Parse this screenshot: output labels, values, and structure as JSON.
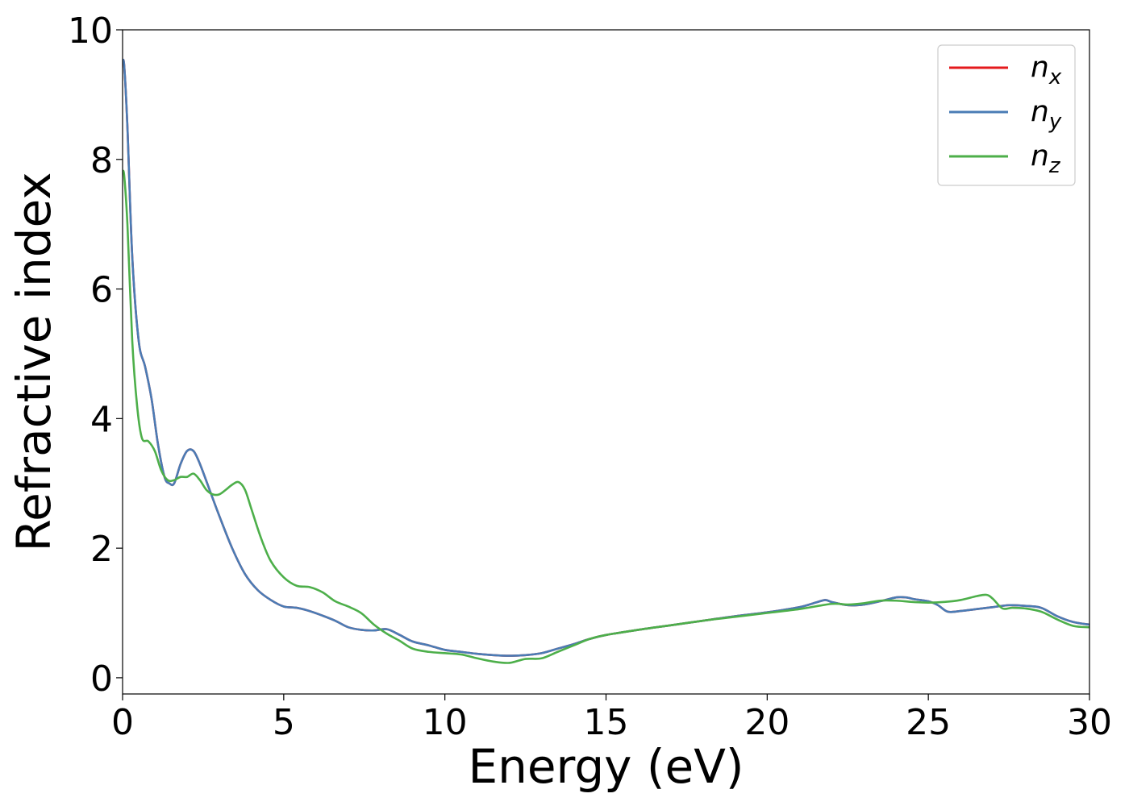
{
  "chart_data": {
    "type": "line",
    "title": "",
    "xlabel": "Energy (eV)",
    "ylabel": "Refractive index",
    "xlim": [
      0,
      30
    ],
    "ylim": [
      -0.25,
      10
    ],
    "x_ticks": [
      0,
      5,
      10,
      15,
      20,
      25,
      30
    ],
    "y_ticks": [
      0,
      2,
      4,
      6,
      8,
      10
    ],
    "x_tick_labels": [
      "0",
      "5",
      "10",
      "15",
      "20",
      "25",
      "30"
    ],
    "y_tick_labels": [
      "0",
      "2",
      "4",
      "6",
      "8",
      "10"
    ],
    "grid": false,
    "legend_position": "top-right",
    "series": [
      {
        "name": "n",
        "subscript": "x",
        "color": "#e41a1c",
        "x": [
          0,
          0.05,
          0.15,
          0.3,
          0.5,
          0.7,
          0.9,
          1.1,
          1.3,
          1.45,
          1.6,
          1.8,
          2.0,
          2.2,
          2.4,
          2.7,
          3.0,
          3.4,
          3.8,
          4.2,
          4.6,
          5.0,
          5.4,
          5.8,
          6.2,
          6.6,
          7.0,
          7.4,
          7.8,
          8.2,
          8.6,
          9.0,
          9.5,
          10.0,
          10.5,
          11.0,
          11.5,
          12.0,
          12.5,
          13.0,
          13.5,
          14.0,
          14.5,
          15.0,
          16.0,
          17.0,
          18.0,
          19.0,
          20.0,
          21.0,
          21.5,
          21.8,
          22.0,
          22.5,
          23.0,
          23.5,
          24.0,
          24.3,
          24.6,
          25.0,
          25.3,
          25.6,
          26.0,
          26.5,
          27.0,
          27.5,
          28.0,
          28.5,
          29.0,
          29.5,
          30.0
        ],
        "values": [
          9.5,
          9.45,
          8.5,
          6.5,
          5.2,
          4.8,
          4.3,
          3.6,
          3.1,
          3.0,
          3.0,
          3.3,
          3.5,
          3.5,
          3.3,
          2.9,
          2.5,
          2.0,
          1.6,
          1.35,
          1.2,
          1.1,
          1.08,
          1.03,
          0.96,
          0.88,
          0.78,
          0.74,
          0.73,
          0.75,
          0.66,
          0.56,
          0.5,
          0.43,
          0.4,
          0.37,
          0.35,
          0.34,
          0.35,
          0.38,
          0.45,
          0.52,
          0.6,
          0.66,
          0.74,
          0.81,
          0.88,
          0.95,
          1.01,
          1.09,
          1.16,
          1.2,
          1.17,
          1.12,
          1.13,
          1.18,
          1.24,
          1.24,
          1.21,
          1.18,
          1.12,
          1.02,
          1.03,
          1.06,
          1.09,
          1.12,
          1.11,
          1.08,
          0.95,
          0.86,
          0.82
        ]
      },
      {
        "name": "n",
        "subscript": "y",
        "color": "#4a7cb5",
        "x": [
          0,
          0.05,
          0.15,
          0.3,
          0.5,
          0.7,
          0.9,
          1.1,
          1.3,
          1.45,
          1.6,
          1.8,
          2.0,
          2.2,
          2.4,
          2.7,
          3.0,
          3.4,
          3.8,
          4.2,
          4.6,
          5.0,
          5.4,
          5.8,
          6.2,
          6.6,
          7.0,
          7.4,
          7.8,
          8.2,
          8.6,
          9.0,
          9.5,
          10.0,
          10.5,
          11.0,
          11.5,
          12.0,
          12.5,
          13.0,
          13.5,
          14.0,
          14.5,
          15.0,
          16.0,
          17.0,
          18.0,
          19.0,
          20.0,
          21.0,
          21.5,
          21.8,
          22.0,
          22.5,
          23.0,
          23.5,
          24.0,
          24.3,
          24.6,
          25.0,
          25.3,
          25.6,
          26.0,
          26.5,
          27.0,
          27.5,
          28.0,
          28.5,
          29.0,
          29.5,
          30.0
        ],
        "values": [
          9.5,
          9.45,
          8.5,
          6.5,
          5.2,
          4.8,
          4.3,
          3.6,
          3.1,
          3.0,
          3.0,
          3.3,
          3.5,
          3.5,
          3.3,
          2.9,
          2.5,
          2.0,
          1.6,
          1.35,
          1.2,
          1.1,
          1.08,
          1.03,
          0.96,
          0.88,
          0.78,
          0.74,
          0.73,
          0.75,
          0.66,
          0.56,
          0.5,
          0.43,
          0.4,
          0.37,
          0.35,
          0.34,
          0.35,
          0.38,
          0.45,
          0.52,
          0.6,
          0.66,
          0.74,
          0.81,
          0.88,
          0.95,
          1.01,
          1.09,
          1.16,
          1.2,
          1.17,
          1.12,
          1.13,
          1.18,
          1.24,
          1.24,
          1.21,
          1.18,
          1.12,
          1.02,
          1.03,
          1.06,
          1.09,
          1.12,
          1.11,
          1.08,
          0.95,
          0.86,
          0.82
        ]
      },
      {
        "name": "n",
        "subscript": "z",
        "color": "#4daf4a",
        "x": [
          0,
          0.05,
          0.15,
          0.3,
          0.45,
          0.6,
          0.8,
          1.0,
          1.2,
          1.4,
          1.6,
          1.8,
          2.0,
          2.2,
          2.4,
          2.6,
          2.8,
          3.0,
          3.2,
          3.4,
          3.6,
          3.8,
          4.0,
          4.3,
          4.6,
          5.0,
          5.4,
          5.8,
          6.2,
          6.6,
          7.0,
          7.4,
          7.8,
          8.2,
          8.6,
          9.0,
          9.5,
          10.0,
          10.5,
          11.0,
          11.5,
          12.0,
          12.5,
          13.0,
          13.5,
          14.0,
          14.5,
          15.0,
          16.0,
          17.0,
          18.0,
          19.0,
          20.0,
          21.0,
          22.0,
          22.5,
          23.0,
          23.5,
          24.0,
          24.5,
          25.0,
          25.5,
          26.0,
          26.5,
          26.8,
          27.0,
          27.3,
          27.6,
          28.0,
          28.5,
          29.0,
          29.5,
          30.0
        ],
        "values": [
          7.8,
          7.75,
          7.0,
          5.2,
          4.2,
          3.7,
          3.65,
          3.5,
          3.2,
          3.05,
          3.05,
          3.1,
          3.1,
          3.15,
          3.05,
          2.9,
          2.83,
          2.83,
          2.9,
          2.98,
          3.02,
          2.9,
          2.6,
          2.15,
          1.8,
          1.55,
          1.42,
          1.4,
          1.32,
          1.18,
          1.1,
          1.0,
          0.82,
          0.68,
          0.57,
          0.45,
          0.4,
          0.38,
          0.36,
          0.3,
          0.25,
          0.23,
          0.29,
          0.3,
          0.4,
          0.5,
          0.6,
          0.66,
          0.74,
          0.81,
          0.88,
          0.94,
          1.0,
          1.06,
          1.14,
          1.13,
          1.15,
          1.19,
          1.19,
          1.17,
          1.16,
          1.17,
          1.2,
          1.26,
          1.28,
          1.22,
          1.07,
          1.08,
          1.07,
          1.02,
          0.9,
          0.8,
          0.78
        ]
      }
    ]
  }
}
